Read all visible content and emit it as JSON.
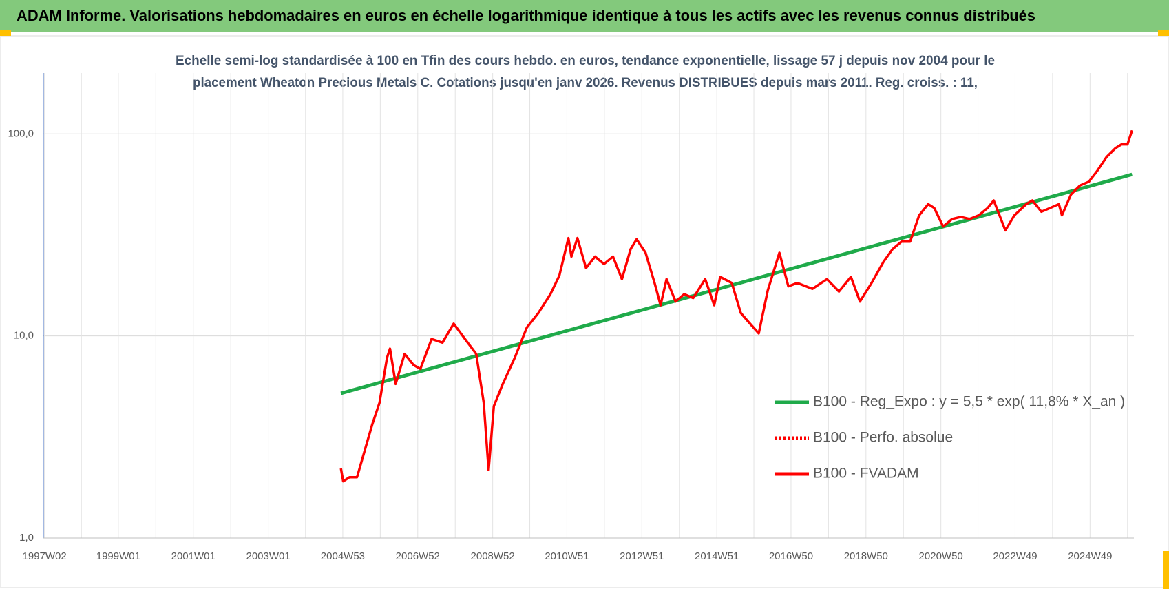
{
  "header": {
    "title": "ADAM Informe. Valorisations hebdomadaires en euros en échelle logarithmique identique à tous les actifs avec les revenus connus distribués"
  },
  "chart_data": {
    "type": "line",
    "title": [
      "Echelle semi-log standardisée à 100 en Tfin des cours hebdo. en euros, tendance exponentielle, lissage 57 j depuis nov 2004 pour le",
      "placement Wheaton Precious Metals C. Cotations jusqu'en janv 2026. Revenus DISTRIBUES depuis mars 2011. Reg. croiss. : 11,"
    ],
    "log_scale": true,
    "grid": true,
    "legend": "right",
    "xlim": [
      1997.0,
      2026.1
    ],
    "xticks": [
      {
        "value": 1997.03,
        "label": "1997W02"
      },
      {
        "value": 1999.0,
        "label": "1999W01"
      },
      {
        "value": 2001.0,
        "label": "2001W01"
      },
      {
        "value": 2003.0,
        "label": "2003W01"
      },
      {
        "value": 2004.99,
        "label": "2004W53"
      },
      {
        "value": 2006.99,
        "label": "2006W52"
      },
      {
        "value": 2008.99,
        "label": "2008W52"
      },
      {
        "value": 2010.97,
        "label": "2010W51"
      },
      {
        "value": 2012.97,
        "label": "2012W51"
      },
      {
        "value": 2014.97,
        "label": "2014W51"
      },
      {
        "value": 2016.95,
        "label": "2016W50"
      },
      {
        "value": 2018.95,
        "label": "2018W50"
      },
      {
        "value": 2020.95,
        "label": "2020W50"
      },
      {
        "value": 2022.93,
        "label": "2022W49"
      },
      {
        "value": 2024.93,
        "label": "2024W49"
      }
    ],
    "ylim": [
      1,
      200
    ],
    "yticks": [
      {
        "value": 1,
        "label": "1,0"
      },
      {
        "value": 10,
        "label": "10,0"
      },
      {
        "value": 100,
        "label": "100,0"
      }
    ],
    "series": [
      {
        "name": "B100 - Reg_Expo : y = 5,5 * exp( 11,8% *  X_an )",
        "color": "#1faa4a",
        "style": "solid",
        "x": [
          2004.94,
          2026.05
        ],
        "values": [
          5.2,
          63
        ]
      },
      {
        "name": "B100 - FVADAM",
        "color": "#ff0000",
        "style": "solid",
        "x": [
          2004.94,
          2005.0,
          2005.17,
          2005.37,
          2005.57,
          2005.77,
          2005.97,
          2006.17,
          2006.25,
          2006.4,
          2006.64,
          2006.88,
          2007.06,
          2007.36,
          2007.65,
          2007.95,
          2008.25,
          2008.55,
          2008.75,
          2008.88,
          2009.02,
          2009.26,
          2009.58,
          2009.9,
          2010.21,
          2010.53,
          2010.77,
          2011.01,
          2011.09,
          2011.25,
          2011.48,
          2011.72,
          2011.96,
          2012.2,
          2012.44,
          2012.67,
          2012.83,
          2013.07,
          2013.31,
          2013.47,
          2013.63,
          2013.87,
          2014.1,
          2014.34,
          2014.66,
          2014.9,
          2015.06,
          2015.37,
          2015.61,
          2015.77,
          2016.09,
          2016.33,
          2016.64,
          2016.88,
          2017.12,
          2017.52,
          2017.91,
          2018.23,
          2018.55,
          2018.79,
          2019.1,
          2019.42,
          2019.66,
          2019.9,
          2020.13,
          2020.37,
          2020.61,
          2020.77,
          2021.01,
          2021.25,
          2021.48,
          2021.72,
          2021.96,
          2022.2,
          2022.36,
          2022.67,
          2022.91,
          2023.23,
          2023.39,
          2023.63,
          2023.87,
          2024.1,
          2024.18,
          2024.42,
          2024.66,
          2024.9,
          2025.13,
          2025.37,
          2025.61,
          2025.77,
          2025.93,
          2026.05
        ],
        "values": [
          2.21,
          1.91,
          2.0,
          2.0,
          2.69,
          3.62,
          4.68,
          7.81,
          8.65,
          5.79,
          8.15,
          7.17,
          6.87,
          9.66,
          9.27,
          11.5,
          9.66,
          8.15,
          4.68,
          2.17,
          4.49,
          5.79,
          7.81,
          11.0,
          13.0,
          16.1,
          19.9,
          30.5,
          24.7,
          30.5,
          21.7,
          24.7,
          22.7,
          24.7,
          19.1,
          26.9,
          30.1,
          25.8,
          18.3,
          14.2,
          19.1,
          14.8,
          16.1,
          15.4,
          19.1,
          14.2,
          19.6,
          18.3,
          13.0,
          12.0,
          10.3,
          16.8,
          25.8,
          17.6,
          18.3,
          17.1,
          19.1,
          16.6,
          19.6,
          14.8,
          18.3,
          23.3,
          26.9,
          29.3,
          29.3,
          39.5,
          44.9,
          43.0,
          34.8,
          37.9,
          38.8,
          37.9,
          39.5,
          43.0,
          46.8,
          33.3,
          39.5,
          44.9,
          46.8,
          41.2,
          43.0,
          44.9,
          39.5,
          50.1,
          55.5,
          58.0,
          65.9,
          76.8,
          85.0,
          88.7,
          88.7,
          104
        ]
      },
      {
        "name": "B100 - Perfo. absolue",
        "color": "#ff0000",
        "style": "dotted"
      }
    ],
    "legend_order": [
      0,
      2,
      1
    ]
  }
}
